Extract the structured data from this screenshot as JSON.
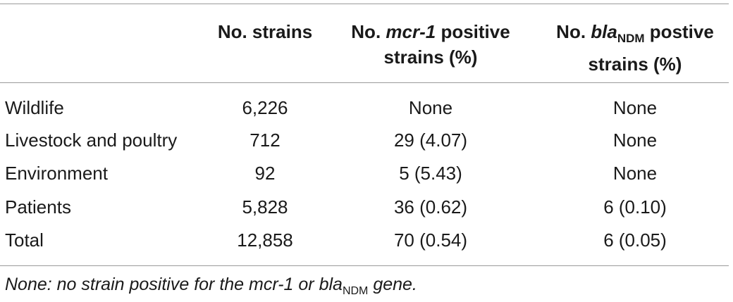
{
  "table": {
    "headers": {
      "col1": "No. strains",
      "col2_pre": "No. ",
      "col2_gene": "mcr-1",
      "col2_post": " positive",
      "col2_line2": "strains (%)",
      "col3_pre": "No. ",
      "col3_gene": "bla",
      "col3_sub": "NDM",
      "col3_post": " postive",
      "col3_line2": "strains (%)"
    },
    "rows": [
      {
        "label": "Wildlife",
        "strains": "6,226",
        "mcr1": "None",
        "ndm": "None"
      },
      {
        "label": "Livestock and poultry",
        "strains": "712",
        "mcr1": "29 (4.07)",
        "ndm": "None"
      },
      {
        "label": "Environment",
        "strains": "92",
        "mcr1": "5 (5.43)",
        "ndm": "None"
      },
      {
        "label": "Patients",
        "strains": "5,828",
        "mcr1": "36 (0.62)",
        "ndm": "6 (0.10)"
      },
      {
        "label": "Total",
        "strains": "12,858",
        "mcr1": "70 (0.54)",
        "ndm": "6 (0.05)"
      }
    ]
  },
  "footnote": {
    "pre": "None: no strain positive for the mcr-1 or bla",
    "sub": "NDM",
    "post": " gene."
  }
}
